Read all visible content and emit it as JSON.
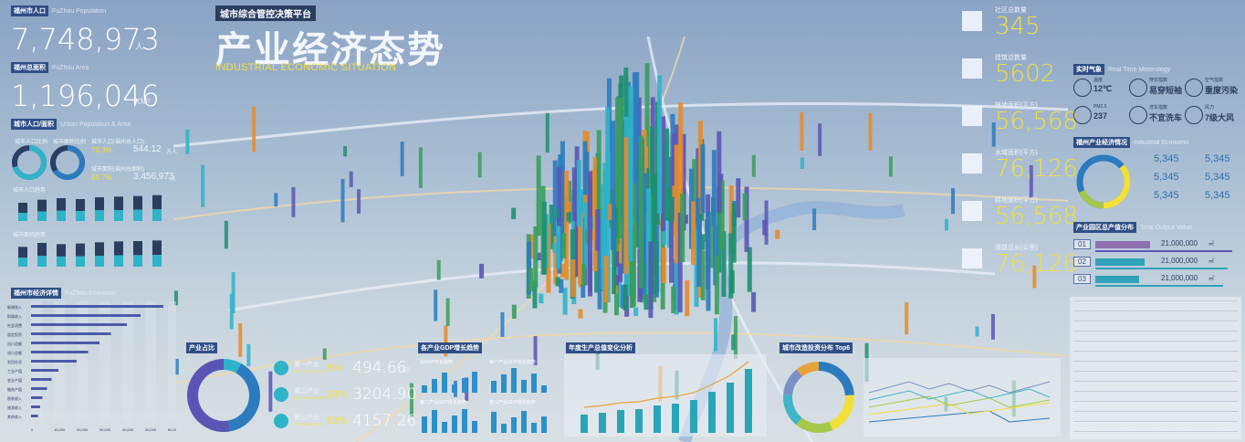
{
  "header": {
    "platform_label": "城市综合管控决策平台",
    "title": "产业经济态势",
    "subtitle": "INDUSTRIAL ECONOMIC SITUATION"
  },
  "left": {
    "population": {
      "tag": "福州市人口",
      "en": "FuZhou Population",
      "value": "7,748,973",
      "unit": "人"
    },
    "area": {
      "tag": "福州总面积",
      "en": "FuZhou Area",
      "value": "1,196,046",
      "unit": "KM²"
    },
    "urban": {
      "tag": "城市人口/面积",
      "en": "Urban Population & Area",
      "ring1_label": "城市人口比例",
      "ring2_label": "城市面积比例",
      "stat1_label": "城市人口(福州总人口)",
      "stat1_pct": "70.3%",
      "stat1_value": "544.12",
      "stat1_unit": "万人",
      "stat2_label": "城市面积(福州总面积)",
      "stat2_pct": "65.7%",
      "stat2_value": "3,456,973",
      "stat2_unit": "㎡",
      "trend1_label": "城市人口趋势",
      "trend2_label": "城市面积趋势"
    },
    "economy": {
      "tag": "福州市经济详情",
      "en": "FuZhou Economic",
      "rows": [
        "新增收入",
        "财政收入",
        "社会消费",
        "固定投资",
        "出口总额",
        "进口总额",
        "利用外资",
        "工业产值",
        "农业产值",
        "服务产值",
        "税收收入",
        "旅游收入",
        "其他收入"
      ],
      "axis_ticks": [
        "0",
        "10,000",
        "20,000",
        "30,000",
        "40,000",
        "50,000",
        "60,000"
      ]
    }
  },
  "bottom": {
    "share": {
      "title": "产业占比",
      "items": [
        {
          "name": "第一产业",
          "en": "FIRST INDUSTRY",
          "pct": "8%",
          "value": "494.66",
          "unit": "亿元"
        },
        {
          "name": "第二产业",
          "en": "SECOND INDUSTRY",
          "pct": "39%",
          "value": "3204.90",
          "unit": "亿元"
        },
        {
          "name": "第三产业",
          "en": "THIRD INDUSTRY",
          "pct": "53%",
          "value": "4157.26",
          "unit": "亿元"
        }
      ]
    },
    "gdp_trend": {
      "title": "各产业GDP增长趋势",
      "sub": [
        "总GDP增长趋势",
        "第一产业GDP增长趋势",
        "第二产业GDP增长趋势",
        "第三产业GDP增长趋势"
      ]
    },
    "annual": {
      "title": "年度生产总值变化分析"
    },
    "invest": {
      "title": "城市改造投资分布 Top6"
    }
  },
  "right": {
    "stats": [
      {
        "label": "社区总数量",
        "value": "345"
      },
      {
        "label": "建筑总数量",
        "value": "5602"
      },
      {
        "label": "林地面积(平方)",
        "value": "56,568"
      },
      {
        "label": "水域面积(平方)",
        "value": "76,126"
      },
      {
        "label": "耕地面积(平方)",
        "value": "56,568"
      },
      {
        "label": "道路总长(公里)",
        "value": "76,126"
      }
    ],
    "weather": {
      "tag": "实时气象",
      "en": "Real Time Meterology",
      "items": [
        {
          "label": "温度",
          "value": "12℃"
        },
        {
          "label": "穿衣指数",
          "value": "易穿短袖"
        },
        {
          "label": "空气指数",
          "value": "重度污染"
        },
        {
          "label": "PM2.5",
          "value": "237"
        },
        {
          "label": "洗车指数",
          "value": "不宜洗车"
        },
        {
          "label": "风力",
          "value": "7级大风"
        }
      ]
    },
    "industry": {
      "tag": "福州产业经济情况",
      "en": "Industrial Economic",
      "values": [
        "5,345",
        "5,345",
        "5,345",
        "5,345",
        "5,345",
        "5,345"
      ]
    },
    "output": {
      "tag": "产业园区总产值分布",
      "en": "Total Output Value",
      "ranks": [
        {
          "rank": "01",
          "value": "21,000,000",
          "unit": "㎡"
        },
        {
          "rank": "02",
          "value": "21,000,000",
          "unit": "㎡"
        },
        {
          "rank": "03",
          "value": "21,000,000",
          "unit": "㎡"
        }
      ]
    }
  },
  "chart_data": [
    {
      "type": "bar",
      "title": "城市人口趋势",
      "values": [
        60,
        70,
        75,
        72,
        78,
        80,
        82,
        85
      ]
    },
    {
      "type": "bar",
      "title": "城市面积趋势",
      "values": [
        65,
        78,
        74,
        76,
        80,
        83,
        84,
        86
      ]
    },
    {
      "type": "bar",
      "title": "福州市经济详情",
      "values": [
        58000,
        48000,
        42000,
        35000,
        30000,
        25000,
        20000,
        12000,
        9000,
        7000,
        5000,
        4000,
        3000
      ],
      "xlim": [
        0,
        60000
      ]
    },
    {
      "type": "pie",
      "title": "产业占比",
      "values": [
        8,
        39,
        53
      ],
      "colors": [
        "#2fb3c9",
        "#2c7bbf",
        "#5a55b5"
      ]
    },
    {
      "type": "bar",
      "title": "年度生产总值变化分析",
      "values": [
        20,
        22,
        25,
        26,
        30,
        32,
        36,
        45,
        55,
        70
      ]
    },
    {
      "type": "pie",
      "title": "城市改造投资分布 Top6",
      "values": [
        22,
        18,
        16,
        14,
        12,
        10
      ],
      "colors": [
        "#2c7bbf",
        "#f3df3c",
        "#a6c84a",
        "#3fb5c7",
        "#7a90c7",
        "#e8a23a"
      ]
    }
  ]
}
